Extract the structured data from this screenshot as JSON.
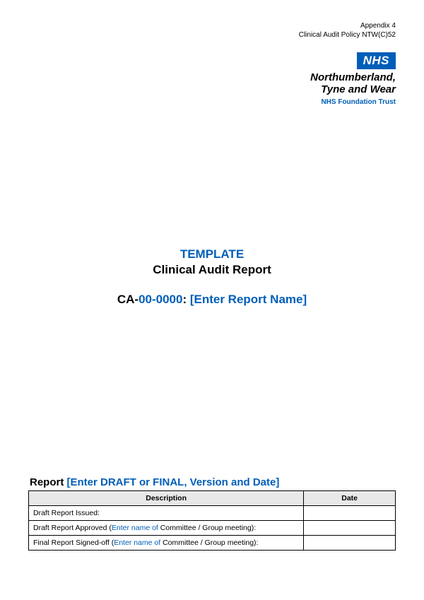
{
  "header": {
    "line1": "Appendix 4",
    "line2": "Clinical Audit Policy NTW(C)52"
  },
  "logo": {
    "badge": "NHS",
    "org_line1": "Northumberland,",
    "org_line2": "Tyne and Wear",
    "trust": "NHS Foundation Trust"
  },
  "center": {
    "template_label": "TEMPLATE",
    "report_title": "Clinical Audit Report",
    "ca_prefix": "CA-",
    "ca_number": "00-0000",
    "ca_colon": ": ",
    "ca_placeholder": "[Enter Report Name]"
  },
  "report": {
    "heading_black": "Report ",
    "heading_blue": "[Enter DRAFT or FINAL, Version and Date]",
    "columns": {
      "description": "Description",
      "date": "Date"
    },
    "rows": [
      {
        "prefix": "Draft Report Issued:",
        "blue_part": "",
        "suffix": "",
        "date": ""
      },
      {
        "prefix": "Draft Report Approved (",
        "blue_part": "Enter name of ",
        "suffix": "Committee / Group meeting):",
        "date": ""
      },
      {
        "prefix": "Final Report Signed-off (",
        "blue_part": "Enter name of ",
        "suffix": "Committee / Group meeting):",
        "date": ""
      }
    ]
  },
  "colors": {
    "nhs_blue": "#005eb8",
    "black": "#000000",
    "header_bg": "#e8e8e8",
    "page_bg": "#ffffff"
  },
  "typography": {
    "body_font": "Arial",
    "header_small": 10,
    "title_size": 17,
    "table_size": 10.5
  }
}
